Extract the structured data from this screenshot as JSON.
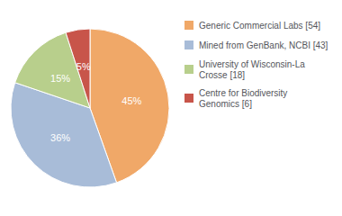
{
  "chart_data": {
    "type": "pie",
    "categories": [
      "Generic Commercial Labs [54]",
      "Mined from GenBank, NCBI [43]",
      "University of Wisconsin-La\nCrosse [18]",
      "Centre for Biodiversity\nGenomics [6]"
    ],
    "values": [
      45,
      36,
      15,
      5
    ],
    "value_labels": [
      "45%",
      "36%",
      "15%",
      "5%"
    ],
    "colors": [
      "#f0a868",
      "#a8bcd8",
      "#b8cf8c",
      "#c8554a"
    ],
    "data_labels": true,
    "legend": "right"
  }
}
